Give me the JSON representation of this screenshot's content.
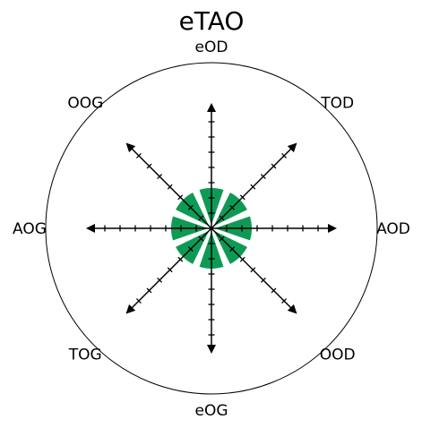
{
  "chart_data": {
    "type": "polar-bar",
    "title": "eTAO",
    "categories": [
      "eOD",
      "TOD",
      "AOD",
      "OOD",
      "eOG",
      "TOG",
      "AOG",
      "OOG"
    ],
    "values": [
      1,
      1,
      1,
      1,
      1,
      1,
      1,
      1
    ],
    "rmax": 4,
    "axis_ticks": [
      0.5,
      1,
      1.5,
      2,
      2.5,
      3,
      3.5
    ],
    "grid": false,
    "colors": {
      "bar": "#0e9a55",
      "axis": "#000000",
      "background": "#ffffff"
    }
  }
}
